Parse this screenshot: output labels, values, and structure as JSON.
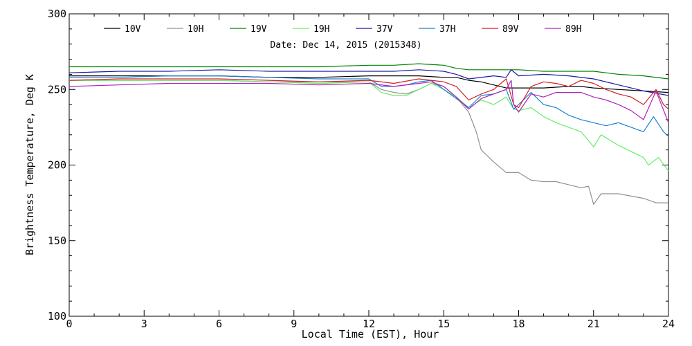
{
  "chart_data": {
    "type": "line",
    "title": "",
    "subtitle": "Date: Dec 14, 2015 (2015348)",
    "xlabel": "Local Time (EST), Hour",
    "ylabel": "Brightness Temperature, Deg K",
    "xlim": [
      0,
      24
    ],
    "ylim": [
      100,
      300
    ],
    "xticks": [
      0,
      3,
      6,
      9,
      12,
      15,
      18,
      21,
      24
    ],
    "yticks": [
      100,
      150,
      200,
      250,
      300
    ],
    "grid": false,
    "legend_position": "top",
    "series": [
      {
        "name": "10V",
        "color": "#000000",
        "points": [
          [
            0,
            259
          ],
          [
            2,
            259
          ],
          [
            4,
            259
          ],
          [
            6,
            259
          ],
          [
            8,
            258
          ],
          [
            10,
            258
          ],
          [
            12,
            259
          ],
          [
            13,
            259
          ],
          [
            14,
            259
          ],
          [
            15,
            258
          ],
          [
            15.5,
            258
          ],
          [
            16,
            256
          ],
          [
            16.5,
            255
          ],
          [
            17,
            253
          ],
          [
            17.5,
            251
          ],
          [
            18,
            251
          ],
          [
            19,
            251
          ],
          [
            20,
            252
          ],
          [
            20.5,
            252
          ],
          [
            21,
            251
          ],
          [
            22,
            250
          ],
          [
            23,
            249
          ],
          [
            24,
            248
          ]
        ]
      },
      {
        "name": "10H",
        "color": "#909090",
        "points": [
          [
            0,
            256
          ],
          [
            2,
            256
          ],
          [
            4,
            256
          ],
          [
            6,
            256
          ],
          [
            8,
            255
          ],
          [
            10,
            255
          ],
          [
            12,
            255
          ],
          [
            12.5,
            250
          ],
          [
            13,
            248
          ],
          [
            13.5,
            247
          ],
          [
            14,
            250
          ],
          [
            14.5,
            254
          ],
          [
            15,
            252
          ],
          [
            15.5,
            245
          ],
          [
            16,
            235
          ],
          [
            16.3,
            222
          ],
          [
            16.5,
            210
          ],
          [
            17,
            202
          ],
          [
            17.5,
            195
          ],
          [
            18,
            195
          ],
          [
            18.5,
            190
          ],
          [
            19,
            189
          ],
          [
            19.5,
            189
          ],
          [
            20,
            187
          ],
          [
            20.5,
            185
          ],
          [
            20.8,
            186
          ],
          [
            21,
            174
          ],
          [
            21.3,
            181
          ],
          [
            22,
            181
          ],
          [
            23,
            178
          ],
          [
            23.5,
            175
          ],
          [
            24,
            175
          ]
        ]
      },
      {
        "name": "19V",
        "color": "#008000",
        "points": [
          [
            0,
            265
          ],
          [
            2,
            265
          ],
          [
            4,
            265
          ],
          [
            6,
            265
          ],
          [
            8,
            265
          ],
          [
            10,
            265
          ],
          [
            12,
            266
          ],
          [
            13,
            266
          ],
          [
            14,
            267
          ],
          [
            15,
            266
          ],
          [
            15.5,
            264
          ],
          [
            16,
            263
          ],
          [
            17,
            263
          ],
          [
            18,
            263
          ],
          [
            19,
            262
          ],
          [
            20,
            262
          ],
          [
            21,
            262
          ],
          [
            22,
            260
          ],
          [
            23,
            259
          ],
          [
            24,
            257
          ]
        ]
      },
      {
        "name": "19H",
        "color": "#66ee66",
        "points": [
          [
            0,
            256
          ],
          [
            2,
            256
          ],
          [
            4,
            256
          ],
          [
            6,
            256
          ],
          [
            8,
            255
          ],
          [
            10,
            254
          ],
          [
            12,
            255
          ],
          [
            12.5,
            248
          ],
          [
            13,
            246
          ],
          [
            13.5,
            246
          ],
          [
            14,
            250
          ],
          [
            14.5,
            254
          ],
          [
            15,
            250
          ],
          [
            15.5,
            245
          ],
          [
            16,
            238
          ],
          [
            16.5,
            243
          ],
          [
            17,
            240
          ],
          [
            17.5,
            245
          ],
          [
            17.8,
            237
          ],
          [
            18,
            236
          ],
          [
            18.5,
            238
          ],
          [
            19,
            232
          ],
          [
            19.5,
            228
          ],
          [
            20,
            225
          ],
          [
            20.5,
            222
          ],
          [
            21,
            212
          ],
          [
            21.3,
            220
          ],
          [
            22,
            213
          ],
          [
            23,
            205
          ],
          [
            23.2,
            200
          ],
          [
            23.6,
            205
          ],
          [
            24,
            196
          ]
        ]
      },
      {
        "name": "37V",
        "color": "#1a1aa6",
        "points": [
          [
            0,
            261
          ],
          [
            2,
            262
          ],
          [
            4,
            262
          ],
          [
            6,
            263
          ],
          [
            8,
            262
          ],
          [
            10,
            262
          ],
          [
            12,
            262
          ],
          [
            13,
            262
          ],
          [
            14,
            263
          ],
          [
            15,
            262
          ],
          [
            15.5,
            260
          ],
          [
            16,
            257
          ],
          [
            17,
            259
          ],
          [
            17.5,
            258
          ],
          [
            17.7,
            263
          ],
          [
            18,
            259
          ],
          [
            19,
            260
          ],
          [
            20,
            259
          ],
          [
            21,
            257
          ],
          [
            22,
            253
          ],
          [
            23,
            249
          ],
          [
            24,
            246
          ]
        ]
      },
      {
        "name": "37H",
        "color": "#1a7fd0",
        "points": [
          [
            0,
            258
          ],
          [
            2,
            258
          ],
          [
            4,
            259
          ],
          [
            6,
            259
          ],
          [
            8,
            258
          ],
          [
            10,
            257
          ],
          [
            12,
            257
          ],
          [
            12.5,
            252
          ],
          [
            13,
            252
          ],
          [
            13.5,
            253
          ],
          [
            14,
            255
          ],
          [
            14.5,
            256
          ],
          [
            15,
            250
          ],
          [
            15.5,
            244
          ],
          [
            16,
            238
          ],
          [
            16.5,
            246
          ],
          [
            17,
            247
          ],
          [
            17.5,
            250
          ],
          [
            17.8,
            237
          ],
          [
            18,
            240
          ],
          [
            18.5,
            248
          ],
          [
            19,
            240
          ],
          [
            19.5,
            238
          ],
          [
            20,
            233
          ],
          [
            20.5,
            230
          ],
          [
            21,
            228
          ],
          [
            21.5,
            226
          ],
          [
            22,
            228
          ],
          [
            23,
            222
          ],
          [
            23.4,
            232
          ],
          [
            23.8,
            222
          ],
          [
            24,
            219
          ]
        ]
      },
      {
        "name": "89V",
        "color": "#d02020",
        "points": [
          [
            0,
            256
          ],
          [
            2,
            257
          ],
          [
            4,
            257
          ],
          [
            6,
            257
          ],
          [
            8,
            256
          ],
          [
            10,
            255
          ],
          [
            12,
            256
          ],
          [
            13,
            254
          ],
          [
            14,
            257
          ],
          [
            14.5,
            256
          ],
          [
            15,
            255
          ],
          [
            15.5,
            252
          ],
          [
            16,
            243
          ],
          [
            16.5,
            247
          ],
          [
            17,
            250
          ],
          [
            17.5,
            257
          ],
          [
            17.8,
            240
          ],
          [
            18,
            238
          ],
          [
            18.5,
            252
          ],
          [
            19,
            255
          ],
          [
            19.5,
            254
          ],
          [
            20,
            252
          ],
          [
            20.5,
            256
          ],
          [
            21,
            254
          ],
          [
            21.5,
            250
          ],
          [
            22,
            247
          ],
          [
            22.5,
            245
          ],
          [
            23,
            240
          ],
          [
            23.5,
            250
          ],
          [
            23.8,
            240
          ],
          [
            24,
            237
          ]
        ]
      },
      {
        "name": "89H",
        "color": "#b020c0",
        "points": [
          [
            0,
            252
          ],
          [
            2,
            253
          ],
          [
            4,
            254
          ],
          [
            6,
            254
          ],
          [
            8,
            254
          ],
          [
            10,
            253
          ],
          [
            12,
            254
          ],
          [
            13,
            252
          ],
          [
            14,
            254
          ],
          [
            14.5,
            255
          ],
          [
            15,
            252
          ],
          [
            15.5,
            245
          ],
          [
            16,
            237
          ],
          [
            16.5,
            244
          ],
          [
            17,
            247
          ],
          [
            17.5,
            250
          ],
          [
            17.7,
            256
          ],
          [
            17.8,
            240
          ],
          [
            18,
            235
          ],
          [
            18.5,
            247
          ],
          [
            19,
            245
          ],
          [
            19.5,
            248
          ],
          [
            20,
            248
          ],
          [
            20.5,
            248
          ],
          [
            21,
            245
          ],
          [
            21.5,
            243
          ],
          [
            22,
            240
          ],
          [
            22.5,
            236
          ],
          [
            23,
            230
          ],
          [
            23.5,
            249
          ],
          [
            24,
            228
          ]
        ]
      }
    ]
  }
}
